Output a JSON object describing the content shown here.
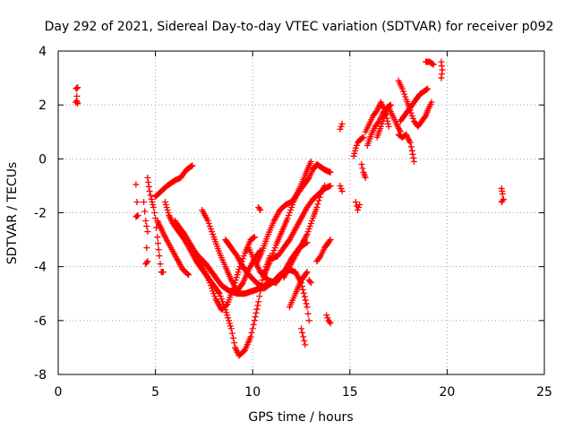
{
  "chart_data": {
    "type": "scatter",
    "title": "Day 292 of 2021, Sidereal Day-to-day VTEC variation (SDTVAR) for receiver p092",
    "xlabel": "GPS time / hours",
    "ylabel": "SDTVAR / TECUs",
    "xlim": [
      0,
      25
    ],
    "ylim": [
      -8,
      4
    ],
    "xticks": [
      0,
      5,
      10,
      15,
      20,
      25
    ],
    "yticks": [
      -8,
      -6,
      -4,
      -2,
      0,
      2,
      4
    ],
    "xtick_labels": [
      "0",
      "5",
      "10",
      "15",
      "20",
      "25"
    ],
    "ytick_labels": [
      "-8",
      "-6",
      "-4",
      "-2",
      "0",
      "2",
      "4"
    ],
    "grid": true,
    "marker": "+",
    "color": "#ff0000",
    "tracks": [
      [
        [
          0.9,
          2.1
        ],
        [
          0.95,
          2.15
        ],
        [
          1.0,
          2.05
        ],
        [
          0.92,
          2.6
        ],
        [
          1.0,
          2.65
        ]
      ],
      [
        [
          4.0,
          -0.95
        ],
        [
          4.05,
          -1.6
        ],
        [
          4.1,
          -2.1
        ],
        [
          4.0,
          -2.15
        ]
      ],
      [
        [
          4.4,
          -1.6
        ],
        [
          4.5,
          -2.3
        ],
        [
          4.6,
          -2.7
        ],
        [
          4.5,
          -3.9
        ],
        [
          4.6,
          -3.8
        ]
      ],
      [
        [
          4.6,
          -0.7
        ],
        [
          4.7,
          -1.2
        ],
        [
          4.8,
          -1.5
        ],
        [
          4.9,
          -1.8
        ],
        [
          5.0,
          -2.2
        ],
        [
          5.1,
          -2.9
        ],
        [
          5.2,
          -3.6
        ],
        [
          5.3,
          -4.2
        ],
        [
          5.4,
          -4.2
        ]
      ],
      [
        [
          5.0,
          -1.4
        ],
        [
          5.3,
          -1.2
        ],
        [
          5.6,
          -1.0
        ],
        [
          6.0,
          -0.8
        ],
        [
          6.3,
          -0.7
        ],
        [
          6.6,
          -0.4
        ],
        [
          6.9,
          -0.25
        ]
      ],
      [
        [
          5.1,
          -2.3
        ],
        [
          5.3,
          -2.6
        ],
        [
          5.5,
          -2.9
        ],
        [
          5.8,
          -3.3
        ],
        [
          6.1,
          -3.7
        ],
        [
          6.4,
          -4.1
        ],
        [
          6.7,
          -4.3
        ]
      ],
      [
        [
          5.5,
          -1.6
        ],
        [
          5.7,
          -2.1
        ],
        [
          5.9,
          -2.4
        ],
        [
          6.1,
          -2.6
        ],
        [
          6.4,
          -2.9
        ],
        [
          6.8,
          -3.3
        ],
        [
          7.2,
          -3.6
        ],
        [
          7.6,
          -3.9
        ],
        [
          8.0,
          -4.3
        ],
        [
          8.4,
          -4.7
        ],
        [
          8.8,
          -4.9
        ],
        [
          9.2,
          -5.0
        ],
        [
          9.6,
          -5.0
        ],
        [
          10.0,
          -4.9
        ],
        [
          10.4,
          -4.8
        ],
        [
          10.8,
          -4.6
        ]
      ],
      [
        [
          6.0,
          -2.3
        ],
        [
          6.5,
          -2.8
        ],
        [
          7.0,
          -3.4
        ],
        [
          7.4,
          -3.9
        ],
        [
          7.8,
          -4.6
        ],
        [
          8.1,
          -5.2
        ],
        [
          8.4,
          -5.6
        ],
        [
          8.7,
          -5.4
        ],
        [
          9.0,
          -4.8
        ],
        [
          9.3,
          -4.1
        ],
        [
          9.6,
          -3.5
        ],
        [
          9.9,
          -3.0
        ],
        [
          10.1,
          -2.9
        ]
      ],
      [
        [
          6.2,
          -2.6
        ],
        [
          6.5,
          -3.0
        ],
        [
          6.8,
          -3.4
        ],
        [
          7.1,
          -3.8
        ],
        [
          7.5,
          -4.2
        ],
        [
          7.9,
          -4.6
        ],
        [
          8.3,
          -5.0
        ],
        [
          8.6,
          -5.6
        ],
        [
          8.9,
          -6.3
        ],
        [
          9.1,
          -7.0
        ],
        [
          9.3,
          -7.3
        ],
        [
          9.6,
          -7.1
        ],
        [
          9.9,
          -6.6
        ],
        [
          10.1,
          -6.0
        ],
        [
          10.3,
          -5.3
        ],
        [
          10.5,
          -4.5
        ],
        [
          10.7,
          -4.0
        ],
        [
          10.9,
          -3.6
        ]
      ],
      [
        [
          7.4,
          -1.9
        ],
        [
          7.7,
          -2.3
        ],
        [
          8.0,
          -2.9
        ],
        [
          8.3,
          -3.5
        ],
        [
          8.6,
          -4.0
        ],
        [
          8.9,
          -4.5
        ],
        [
          9.2,
          -4.9
        ],
        [
          9.5,
          -4.6
        ],
        [
          9.8,
          -4.1
        ],
        [
          10.1,
          -3.7
        ],
        [
          10.4,
          -3.4
        ]
      ],
      [
        [
          8.6,
          -3.0
        ],
        [
          8.9,
          -3.3
        ],
        [
          9.2,
          -3.6
        ],
        [
          9.5,
          -4.0
        ],
        [
          9.8,
          -4.3
        ],
        [
          10.2,
          -4.6
        ],
        [
          10.6,
          -4.8
        ],
        [
          11.0,
          -4.6
        ],
        [
          11.4,
          -4.3
        ],
        [
          11.8,
          -4.1
        ],
        [
          12.2,
          -4.2
        ],
        [
          12.5,
          -4.6
        ],
        [
          12.8,
          -5.5
        ],
        [
          12.9,
          -6.0
        ]
      ],
      [
        [
          9.8,
          -3.3
        ],
        [
          10.1,
          -3.8
        ],
        [
          10.4,
          -4.2
        ],
        [
          10.8,
          -4.5
        ],
        [
          11.2,
          -4.6
        ],
        [
          11.6,
          -4.2
        ],
        [
          12.0,
          -3.7
        ],
        [
          12.4,
          -3.3
        ],
        [
          12.8,
          -3.1
        ]
      ],
      [
        [
          10.2,
          -3.9
        ],
        [
          10.5,
          -3.4
        ],
        [
          10.8,
          -2.8
        ],
        [
          11.1,
          -2.3
        ],
        [
          11.4,
          -1.9
        ],
        [
          11.7,
          -1.7
        ],
        [
          12.0,
          -1.6
        ],
        [
          12.3,
          -1.3
        ],
        [
          12.6,
          -1.0
        ],
        [
          12.9,
          -0.7
        ],
        [
          13.1,
          -0.4
        ],
        [
          13.3,
          -0.2
        ],
        [
          13.5,
          -0.3
        ],
        [
          13.7,
          -0.4
        ],
        [
          14.0,
          -0.5
        ]
      ],
      [
        [
          10.6,
          -4.3
        ],
        [
          10.9,
          -3.8
        ],
        [
          11.2,
          -3.2
        ],
        [
          11.5,
          -2.7
        ],
        [
          11.8,
          -2.2
        ],
        [
          12.1,
          -1.6
        ],
        [
          12.4,
          -1.1
        ],
        [
          12.7,
          -0.6
        ],
        [
          13.0,
          -0.1
        ]
      ],
      [
        [
          11.0,
          -3.7
        ],
        [
          11.3,
          -3.6
        ],
        [
          11.6,
          -3.3
        ],
        [
          11.9,
          -3.0
        ],
        [
          12.2,
          -2.6
        ],
        [
          12.5,
          -2.2
        ],
        [
          12.8,
          -1.8
        ],
        [
          13.1,
          -1.5
        ],
        [
          13.4,
          -1.3
        ],
        [
          13.7,
          -1.1
        ],
        [
          14.0,
          -1.0
        ]
      ],
      [
        [
          11.6,
          -4.4
        ],
        [
          11.9,
          -4.0
        ],
        [
          12.2,
          -3.6
        ],
        [
          12.5,
          -3.2
        ],
        [
          12.8,
          -2.8
        ],
        [
          13.1,
          -2.2
        ],
        [
          13.3,
          -1.8
        ],
        [
          13.5,
          -1.3
        ],
        [
          13.7,
          -1.0
        ]
      ],
      [
        [
          11.9,
          -5.5
        ],
        [
          12.2,
          -5.0
        ],
        [
          12.5,
          -4.5
        ],
        [
          12.8,
          -4.2
        ]
      ],
      [
        [
          12.5,
          -6.3
        ],
        [
          12.6,
          -6.6
        ],
        [
          12.7,
          -6.9
        ]
      ],
      [
        [
          12.9,
          -4.5
        ],
        [
          13.0,
          -4.6
        ]
      ],
      [
        [
          13.3,
          -3.8
        ],
        [
          13.5,
          -3.6
        ],
        [
          13.7,
          -3.3
        ],
        [
          13.9,
          -3.1
        ],
        [
          14.0,
          -3.0
        ]
      ],
      [
        [
          13.8,
          -5.8
        ],
        [
          13.9,
          -6.0
        ],
        [
          14.0,
          -6.1
        ]
      ],
      [
        [
          10.3,
          -1.8
        ],
        [
          10.4,
          -1.9
        ]
      ],
      [
        [
          14.5,
          -1.0
        ],
        [
          14.6,
          -1.2
        ]
      ],
      [
        [
          14.5,
          1.1
        ],
        [
          14.6,
          1.3
        ]
      ],
      [
        [
          15.2,
          0.1
        ],
        [
          15.3,
          0.4
        ],
        [
          15.4,
          0.6
        ],
        [
          15.5,
          0.7
        ],
        [
          15.7,
          0.8
        ]
      ],
      [
        [
          15.3,
          -1.6
        ],
        [
          15.4,
          -1.9
        ],
        [
          15.5,
          -1.7
        ]
      ],
      [
        [
          15.6,
          -0.2
        ],
        [
          15.7,
          -0.5
        ],
        [
          15.8,
          -0.7
        ]
      ],
      [
        [
          15.8,
          1.0
        ],
        [
          16.0,
          1.3
        ],
        [
          16.2,
          1.6
        ],
        [
          16.4,
          1.8
        ],
        [
          16.6,
          2.1
        ],
        [
          16.8,
          1.8
        ],
        [
          16.9,
          1.5
        ],
        [
          17.0,
          1.2
        ]
      ],
      [
        [
          15.9,
          0.5
        ],
        [
          16.1,
          0.9
        ],
        [
          16.3,
          1.2
        ],
        [
          16.5,
          1.4
        ],
        [
          16.7,
          1.7
        ],
        [
          16.9,
          1.9
        ],
        [
          17.1,
          2.0
        ]
      ],
      [
        [
          16.4,
          0.8
        ],
        [
          16.6,
          1.2
        ],
        [
          16.8,
          1.6
        ],
        [
          17.0,
          1.9
        ],
        [
          17.2,
          1.6
        ],
        [
          17.4,
          1.3
        ],
        [
          17.6,
          1.0
        ]
      ],
      [
        [
          17.5,
          2.9
        ],
        [
          17.7,
          2.6
        ],
        [
          17.9,
          2.2
        ],
        [
          18.1,
          1.8
        ],
        [
          18.3,
          1.4
        ],
        [
          18.5,
          1.2
        ],
        [
          18.7,
          1.4
        ],
        [
          18.9,
          1.6
        ],
        [
          19.0,
          1.8
        ],
        [
          19.2,
          2.1
        ]
      ],
      [
        [
          17.5,
          0.9
        ],
        [
          17.7,
          0.8
        ],
        [
          17.9,
          0.9
        ],
        [
          18.1,
          0.6
        ],
        [
          18.2,
          0.3
        ],
        [
          18.3,
          -0.1
        ]
      ],
      [
        [
          17.6,
          1.4
        ],
        [
          17.8,
          1.6
        ],
        [
          18.0,
          1.8
        ],
        [
          18.2,
          2.0
        ],
        [
          18.4,
          2.2
        ],
        [
          18.6,
          2.4
        ],
        [
          18.8,
          2.5
        ],
        [
          19.0,
          2.6
        ]
      ],
      [
        [
          18.9,
          3.6
        ],
        [
          19.1,
          3.6
        ],
        [
          19.3,
          3.5
        ]
      ],
      [
        [
          19.7,
          3.0
        ],
        [
          19.75,
          3.3
        ],
        [
          19.7,
          3.6
        ]
      ],
      [
        [
          22.8,
          -1.1
        ],
        [
          22.85,
          -1.3
        ],
        [
          22.9,
          -1.5
        ],
        [
          22.8,
          -1.6
        ]
      ]
    ]
  }
}
